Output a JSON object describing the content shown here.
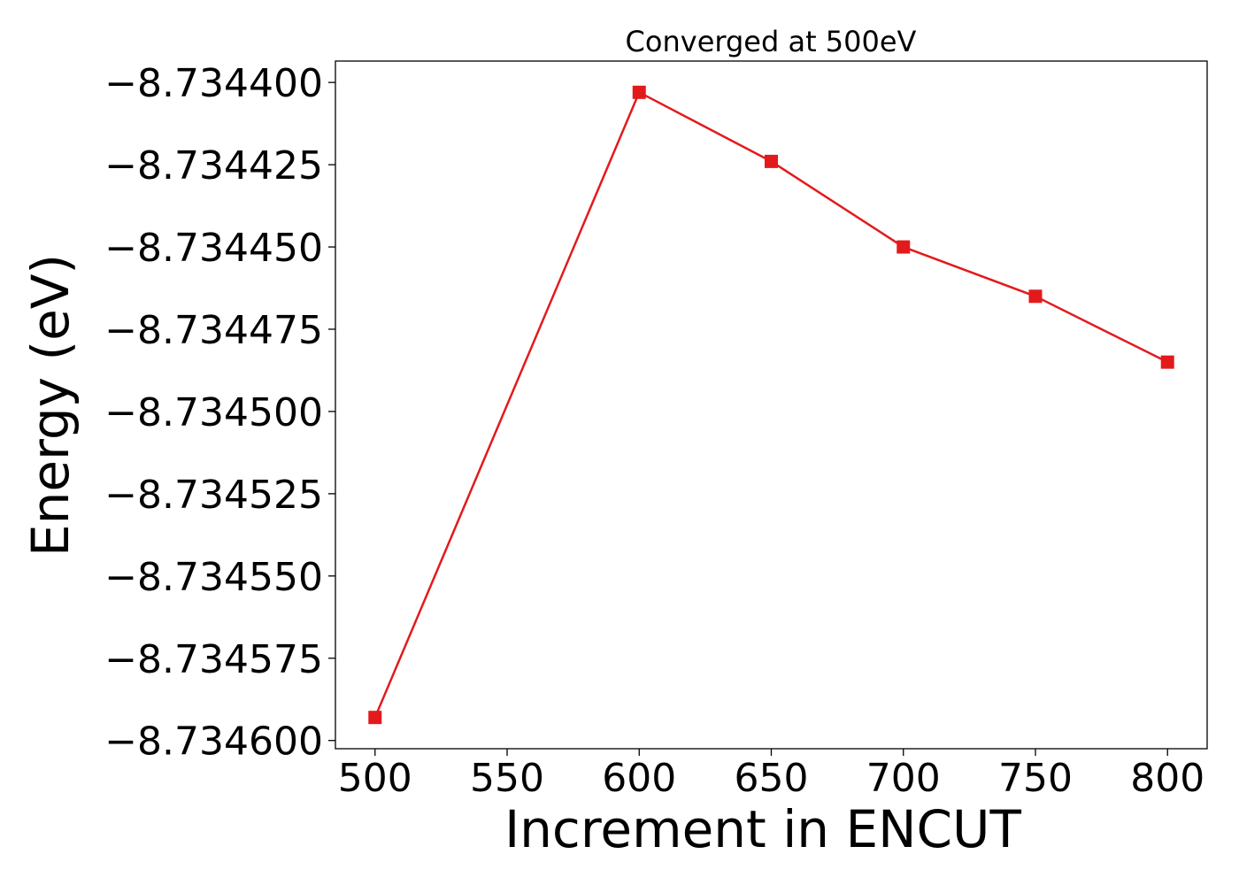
{
  "chart_data": {
    "type": "line",
    "title": "Converged at 500eV",
    "xlabel": "Increment in ENCUT",
    "ylabel": "Energy (eV)",
    "x": [
      500,
      600,
      650,
      700,
      750,
      800
    ],
    "series": [
      {
        "values": [
          -8.734593,
          -8.734403,
          -8.734424,
          -8.73445,
          -8.734465,
          -8.734485
        ],
        "color": "#e31a1c",
        "marker": "square"
      }
    ],
    "xticks": [
      500,
      550,
      600,
      650,
      700,
      750,
      800
    ],
    "xtick_labels": [
      "500",
      "550",
      "600",
      "650",
      "700",
      "750",
      "800"
    ],
    "yticks": [
      -8.7344,
      -8.734425,
      -8.73445,
      -8.734475,
      -8.7345,
      -8.734525,
      -8.73455,
      -8.734575,
      -8.7346
    ],
    "ytick_labels": [
      "−8.734400",
      "−8.734425",
      "−8.734450",
      "−8.734475",
      "−8.734500",
      "−8.734525",
      "−8.734550",
      "−8.734575",
      "−8.734600"
    ],
    "xlim": [
      485,
      815
    ],
    "ylim": [
      -8.7346025,
      -8.7343935
    ],
    "grid": false,
    "legend": "none"
  }
}
